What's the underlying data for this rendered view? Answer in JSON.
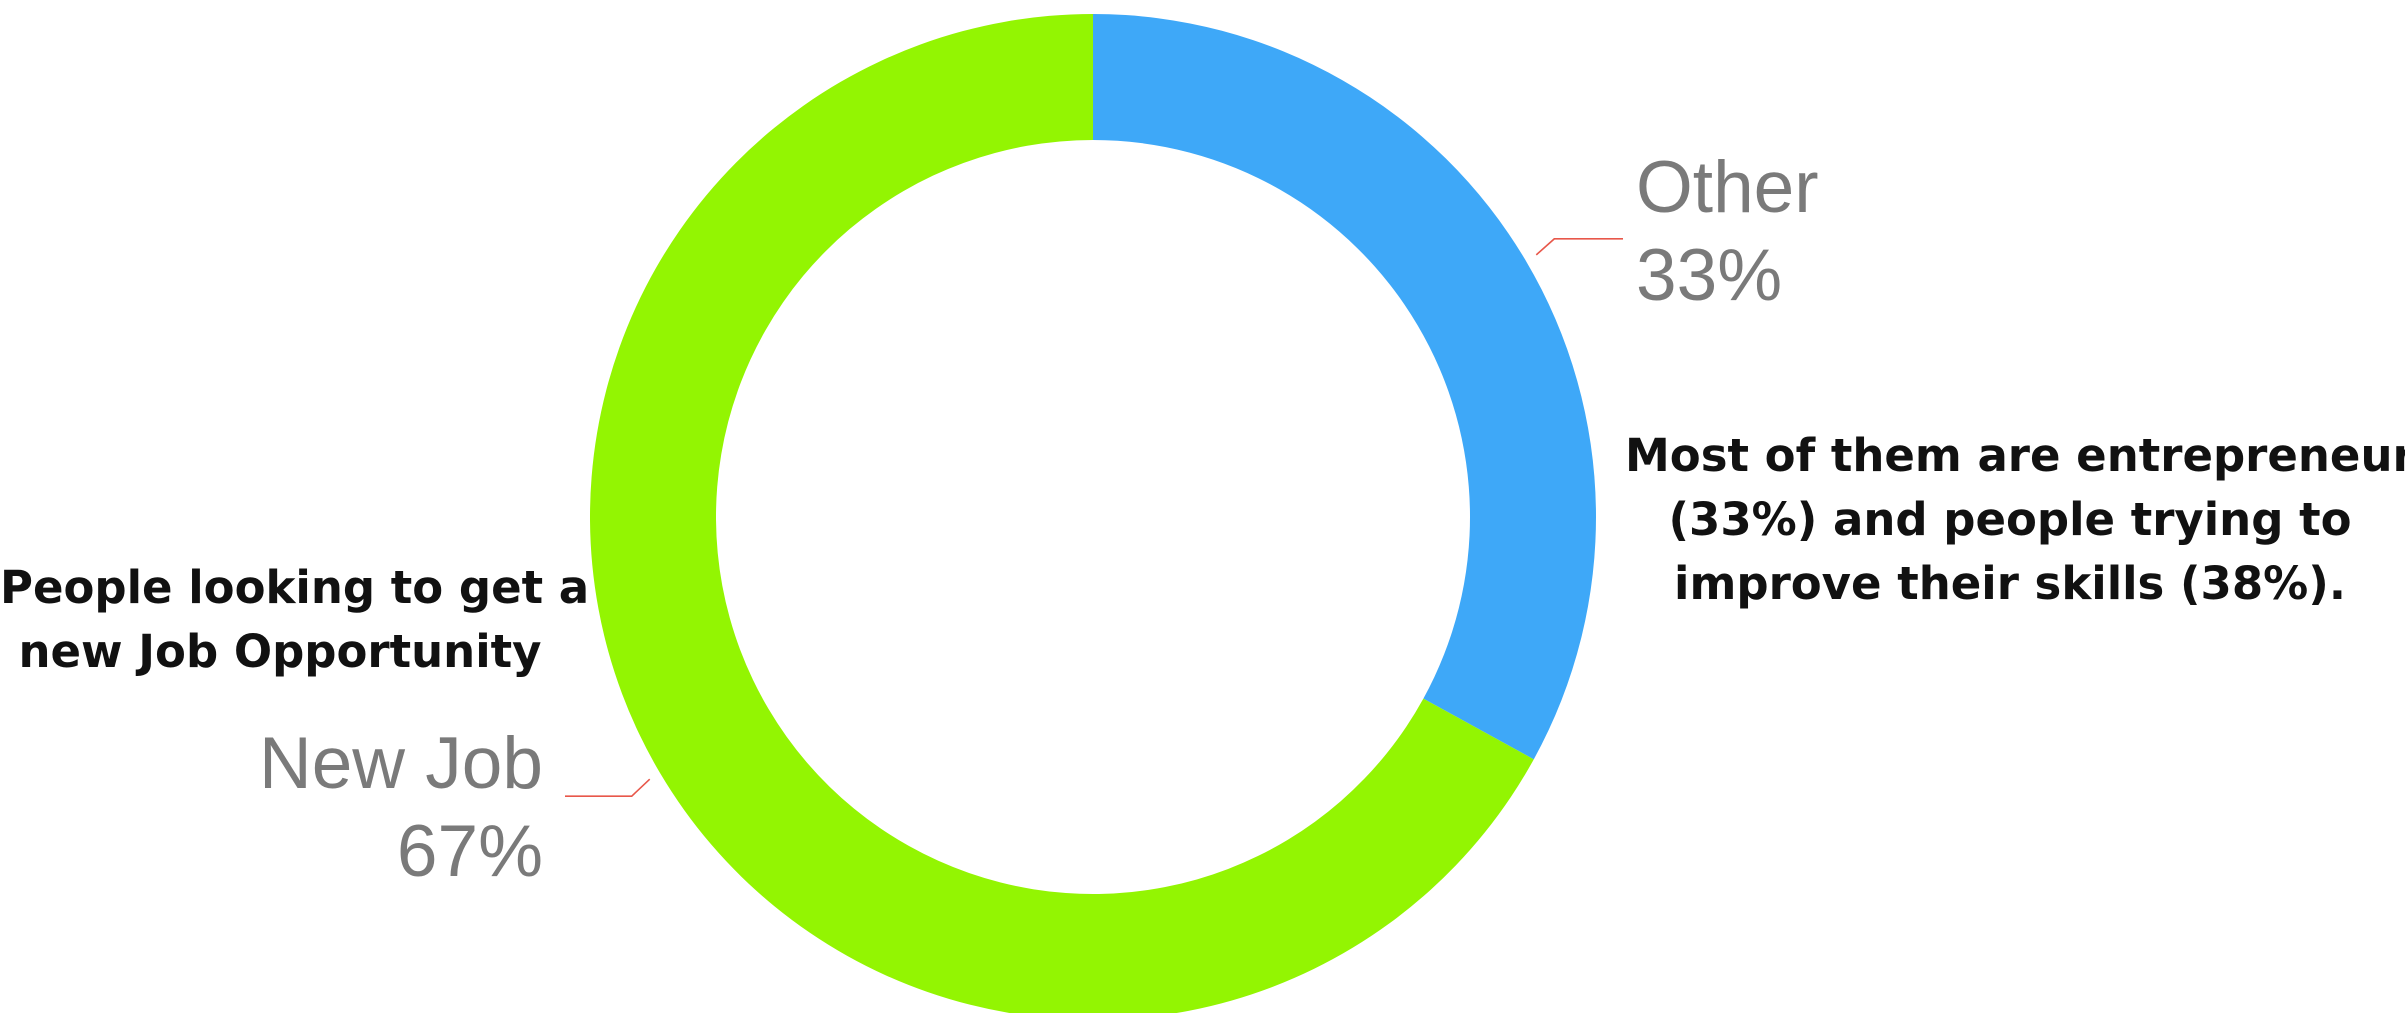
{
  "chart_data": {
    "type": "pie",
    "style": "donut",
    "slices": [
      {
        "label": "Other",
        "value": 33,
        "value_label": "33%",
        "color": "#3ea8f8"
      },
      {
        "label": "New Job",
        "value": 67,
        "value_label": "67%",
        "color": "#93f502"
      }
    ],
    "leader_line_color": "#e8574a",
    "annotations": {
      "right": [
        "Most of them are entrepreneurs",
        "(33%) and people trying to",
        "improve their skills (38%)."
      ],
      "left": [
        "People looking to get a",
        "new Job Opportunity"
      ]
    }
  }
}
